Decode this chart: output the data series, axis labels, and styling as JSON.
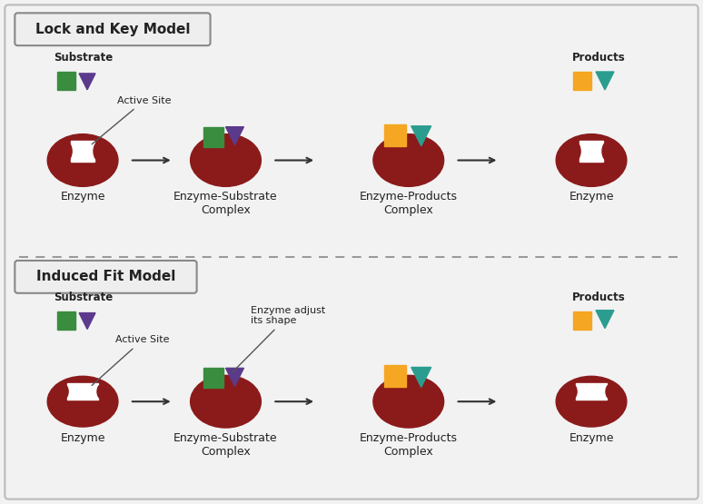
{
  "background_color": "#f2f2f2",
  "border_color": "#bbbbbb",
  "enzyme_color": "#8B1A1A",
  "green_color": "#3a8c3f",
  "purple_color": "#5b3a8c",
  "yellow_color": "#f5a623",
  "teal_color": "#2a9d8f",
  "white_color": "#ffffff",
  "text_color": "#222222",
  "arrow_color": "#333333",
  "dashed_line_color": "#888888",
  "title1": "Lock and Key Model",
  "title2": "Induced Fit Model",
  "label_enzyme": "Enzyme",
  "label_es_complex": "Enzyme-Substrate\nComplex",
  "label_ep_complex": "Enzyme-Products\nComplex",
  "label_substrate": "Substrate",
  "label_active_site": "Active Site",
  "label_products": "Products",
  "label_adjust": "Enzyme adjust\nits shape"
}
